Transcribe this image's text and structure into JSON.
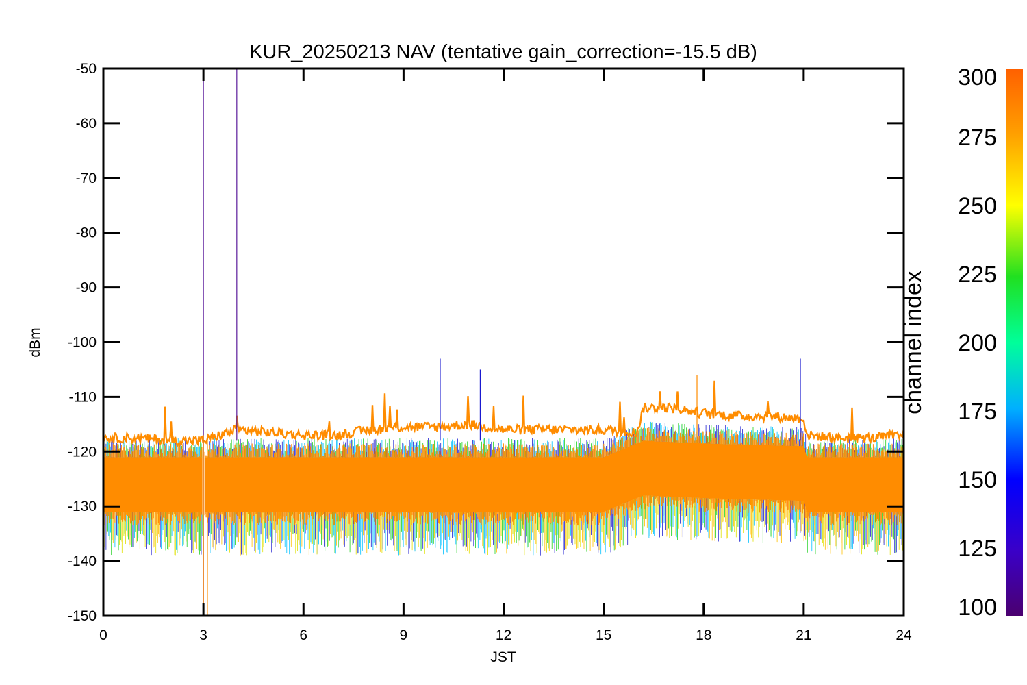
{
  "chart_data": {
    "type": "line",
    "title": "KUR_20250213 NAV (tentative gain_correction=-15.5 dB)",
    "xlabel": "JST",
    "ylabel": "dBm",
    "xlim": [
      0,
      24
    ],
    "ylim": [
      -150,
      -50
    ],
    "x_ticks": [
      0,
      3,
      6,
      9,
      12,
      15,
      18,
      21,
      24
    ],
    "y_ticks": [
      -50,
      -60,
      -70,
      -80,
      -90,
      -100,
      -110,
      -120,
      -130,
      -140,
      -150
    ],
    "grid": false,
    "colorbar": {
      "label": "channel index",
      "range": [
        100,
        300
      ],
      "ticks": [
        300,
        275,
        250,
        225,
        200,
        175,
        150,
        125,
        100
      ],
      "colormap": "rainbow (purple-blue-cyan-green-yellow-orange)"
    },
    "series": [
      {
        "description_role": "max envelope (top band, orange)",
        "color": "#ff8c00",
        "x": [
          0,
          1,
          2,
          3,
          4,
          5,
          6,
          7,
          8,
          9,
          10,
          11,
          12,
          13,
          14,
          15,
          16,
          16.2,
          17,
          18,
          19,
          20,
          21,
          21.1,
          22,
          23,
          24
        ],
        "y": [
          -117.5,
          -117.5,
          -118,
          -118,
          -116,
          -116.5,
          -117,
          -117,
          -116,
          -115.5,
          -115.5,
          -115,
          -116,
          -116,
          -116,
          -116,
          -116.5,
          -112,
          -112,
          -113,
          -113.5,
          -113.5,
          -114,
          -117,
          -117.5,
          -117.5,
          -117
        ]
      },
      {
        "description_role": "dense lower band upper edge",
        "color": "#ff8c00",
        "x": [
          0,
          3,
          6,
          9,
          12,
          15,
          16.2,
          18,
          21,
          21.1,
          24
        ],
        "y": [
          -121,
          -121,
          -121,
          -121,
          -121,
          -121,
          -118,
          -118.5,
          -119,
          -121,
          -121
        ]
      },
      {
        "description_role": "dense lower band lower edge",
        "color": "#ff8c00",
        "x": [
          0,
          3,
          6,
          9,
          12,
          15,
          16.2,
          18,
          21,
          21.1,
          24
        ],
        "y": [
          -131,
          -131,
          -131,
          -131,
          -131,
          -131,
          -128,
          -128.5,
          -129,
          -131,
          -131
        ]
      }
    ],
    "spikes": [
      {
        "x": 3.0,
        "y_from": -150,
        "y_to": -50,
        "color": "#5a1a9a"
      },
      {
        "x": 4.0,
        "y_from": -118,
        "y_to": -50,
        "color": "#5a1a9a"
      },
      {
        "x": 3.0,
        "y_from": -150,
        "y_to": -117,
        "color": "#ff8c00"
      },
      {
        "x": 3.12,
        "y_from": -150,
        "y_to": -117,
        "color": "#ff8c00"
      },
      {
        "x": 10.1,
        "y_from": -118,
        "y_to": -103,
        "color": "#1a1ad0"
      },
      {
        "x": 11.3,
        "y_from": -118,
        "y_to": -105,
        "color": "#1a1ad0"
      },
      {
        "x": 17.8,
        "y_from": -118,
        "y_to": -106,
        "color": "#ff8c00"
      },
      {
        "x": 20.9,
        "y_from": -118,
        "y_to": -103,
        "color": "#1a1ad0"
      }
    ]
  }
}
